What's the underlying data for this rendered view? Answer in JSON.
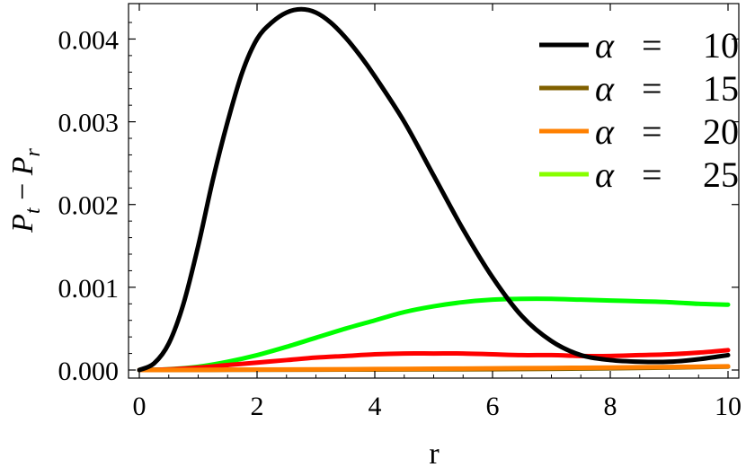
{
  "chart_data": {
    "type": "line",
    "xlabel": "r",
    "ylabel": "P_t − P_r",
    "ylabel_main": "P",
    "ylabel_sub1": "t",
    "ylabel_sep": " − ",
    "ylabel_sub2": "r",
    "xlim": [
      0,
      10
    ],
    "ylim": [
      0,
      0.0044
    ],
    "x_ticks": [
      0,
      2,
      4,
      6,
      8,
      10
    ],
    "x_tick_labels": [
      "0",
      "2",
      "4",
      "6",
      "8",
      "10"
    ],
    "y_ticks": [
      0,
      0.001,
      0.002,
      0.003,
      0.004
    ],
    "y_tick_labels": [
      "0.000",
      "0.001",
      "0.002",
      "0.003",
      "0.004"
    ],
    "grid": false,
    "legend_position": "top-right",
    "series": [
      {
        "name": "α = 10",
        "legend_symbol": "α",
        "legend_eq": "=",
        "legend_value": "10",
        "color": "#000000",
        "x": [
          0,
          0.25,
          0.5,
          0.75,
          1,
          1.25,
          1.5,
          1.75,
          2,
          2.25,
          2.5,
          2.75,
          3,
          3.25,
          3.5,
          3.75,
          4,
          4.5,
          5,
          5.5,
          6,
          6.5,
          7,
          7.5,
          8,
          8.5,
          9,
          9.5,
          10
        ],
        "y": [
          0,
          8e-05,
          0.00032,
          0.0008,
          0.0015,
          0.0023,
          0.003,
          0.0036,
          0.004,
          0.0042,
          0.00432,
          0.00436,
          0.00432,
          0.0042,
          0.00402,
          0.0038,
          0.00355,
          0.003,
          0.00235,
          0.0017,
          0.00112,
          0.00065,
          0.00035,
          0.00018,
          0.00012,
          0.0001,
          0.0001,
          0.00013,
          0.00018
        ]
      },
      {
        "name": "α = 15",
        "legend_symbol": "α",
        "legend_eq": "=",
        "legend_value": "15",
        "color": "#806000",
        "x": [
          0,
          2,
          4,
          6,
          8,
          10
        ],
        "y": [
          0,
          3e-06,
          6e-06,
          1e-05,
          2e-05,
          4e-05
        ]
      },
      {
        "name": "α = 20",
        "legend_symbol": "α",
        "legend_eq": "=",
        "legend_value": "20",
        "color": "#ff8000",
        "x": [
          0,
          1,
          2,
          3,
          4,
          5,
          6,
          7,
          8,
          9,
          10
        ],
        "y": [
          0,
          2e-06,
          5e-06,
          8e-06,
          1.2e-05,
          1.6e-05,
          2e-05,
          2.5e-05,
          3e-05,
          3.7e-05,
          4.5e-05
        ]
      },
      {
        "name": "",
        "color": "#ff0000",
        "x": [
          0,
          0.5,
          1,
          1.5,
          2,
          2.5,
          3,
          3.5,
          4,
          4.5,
          5,
          5.5,
          6,
          6.5,
          7,
          7.5,
          8,
          8.5,
          9,
          9.5,
          10
        ],
        "y": [
          0,
          8e-06,
          3e-05,
          6e-05,
          9e-05,
          0.00012,
          0.00015,
          0.00017,
          0.00019,
          0.0002,
          0.0002,
          0.0002,
          0.00019,
          0.00018,
          0.00018,
          0.00017,
          0.00017,
          0.00018,
          0.00019,
          0.00021,
          0.00024
        ]
      },
      {
        "name": "α = 25",
        "legend_symbol": "α",
        "legend_eq": "=",
        "legend_value": "25",
        "color": "#00ff00",
        "legend_color": "#88ff00",
        "x": [
          0,
          0.5,
          1,
          1.5,
          2,
          2.5,
          3,
          3.5,
          4,
          4.5,
          5,
          5.5,
          6,
          6.5,
          7,
          7.5,
          8,
          8.5,
          9,
          9.5,
          10
        ],
        "y": [
          0,
          1e-05,
          4e-05,
          0.0001,
          0.00018,
          0.00028,
          0.00039,
          0.0005,
          0.0006,
          0.0007,
          0.00077,
          0.00082,
          0.00085,
          0.00086,
          0.00086,
          0.00085,
          0.00084,
          0.00083,
          0.00082,
          0.0008,
          0.00079
        ]
      }
    ]
  }
}
